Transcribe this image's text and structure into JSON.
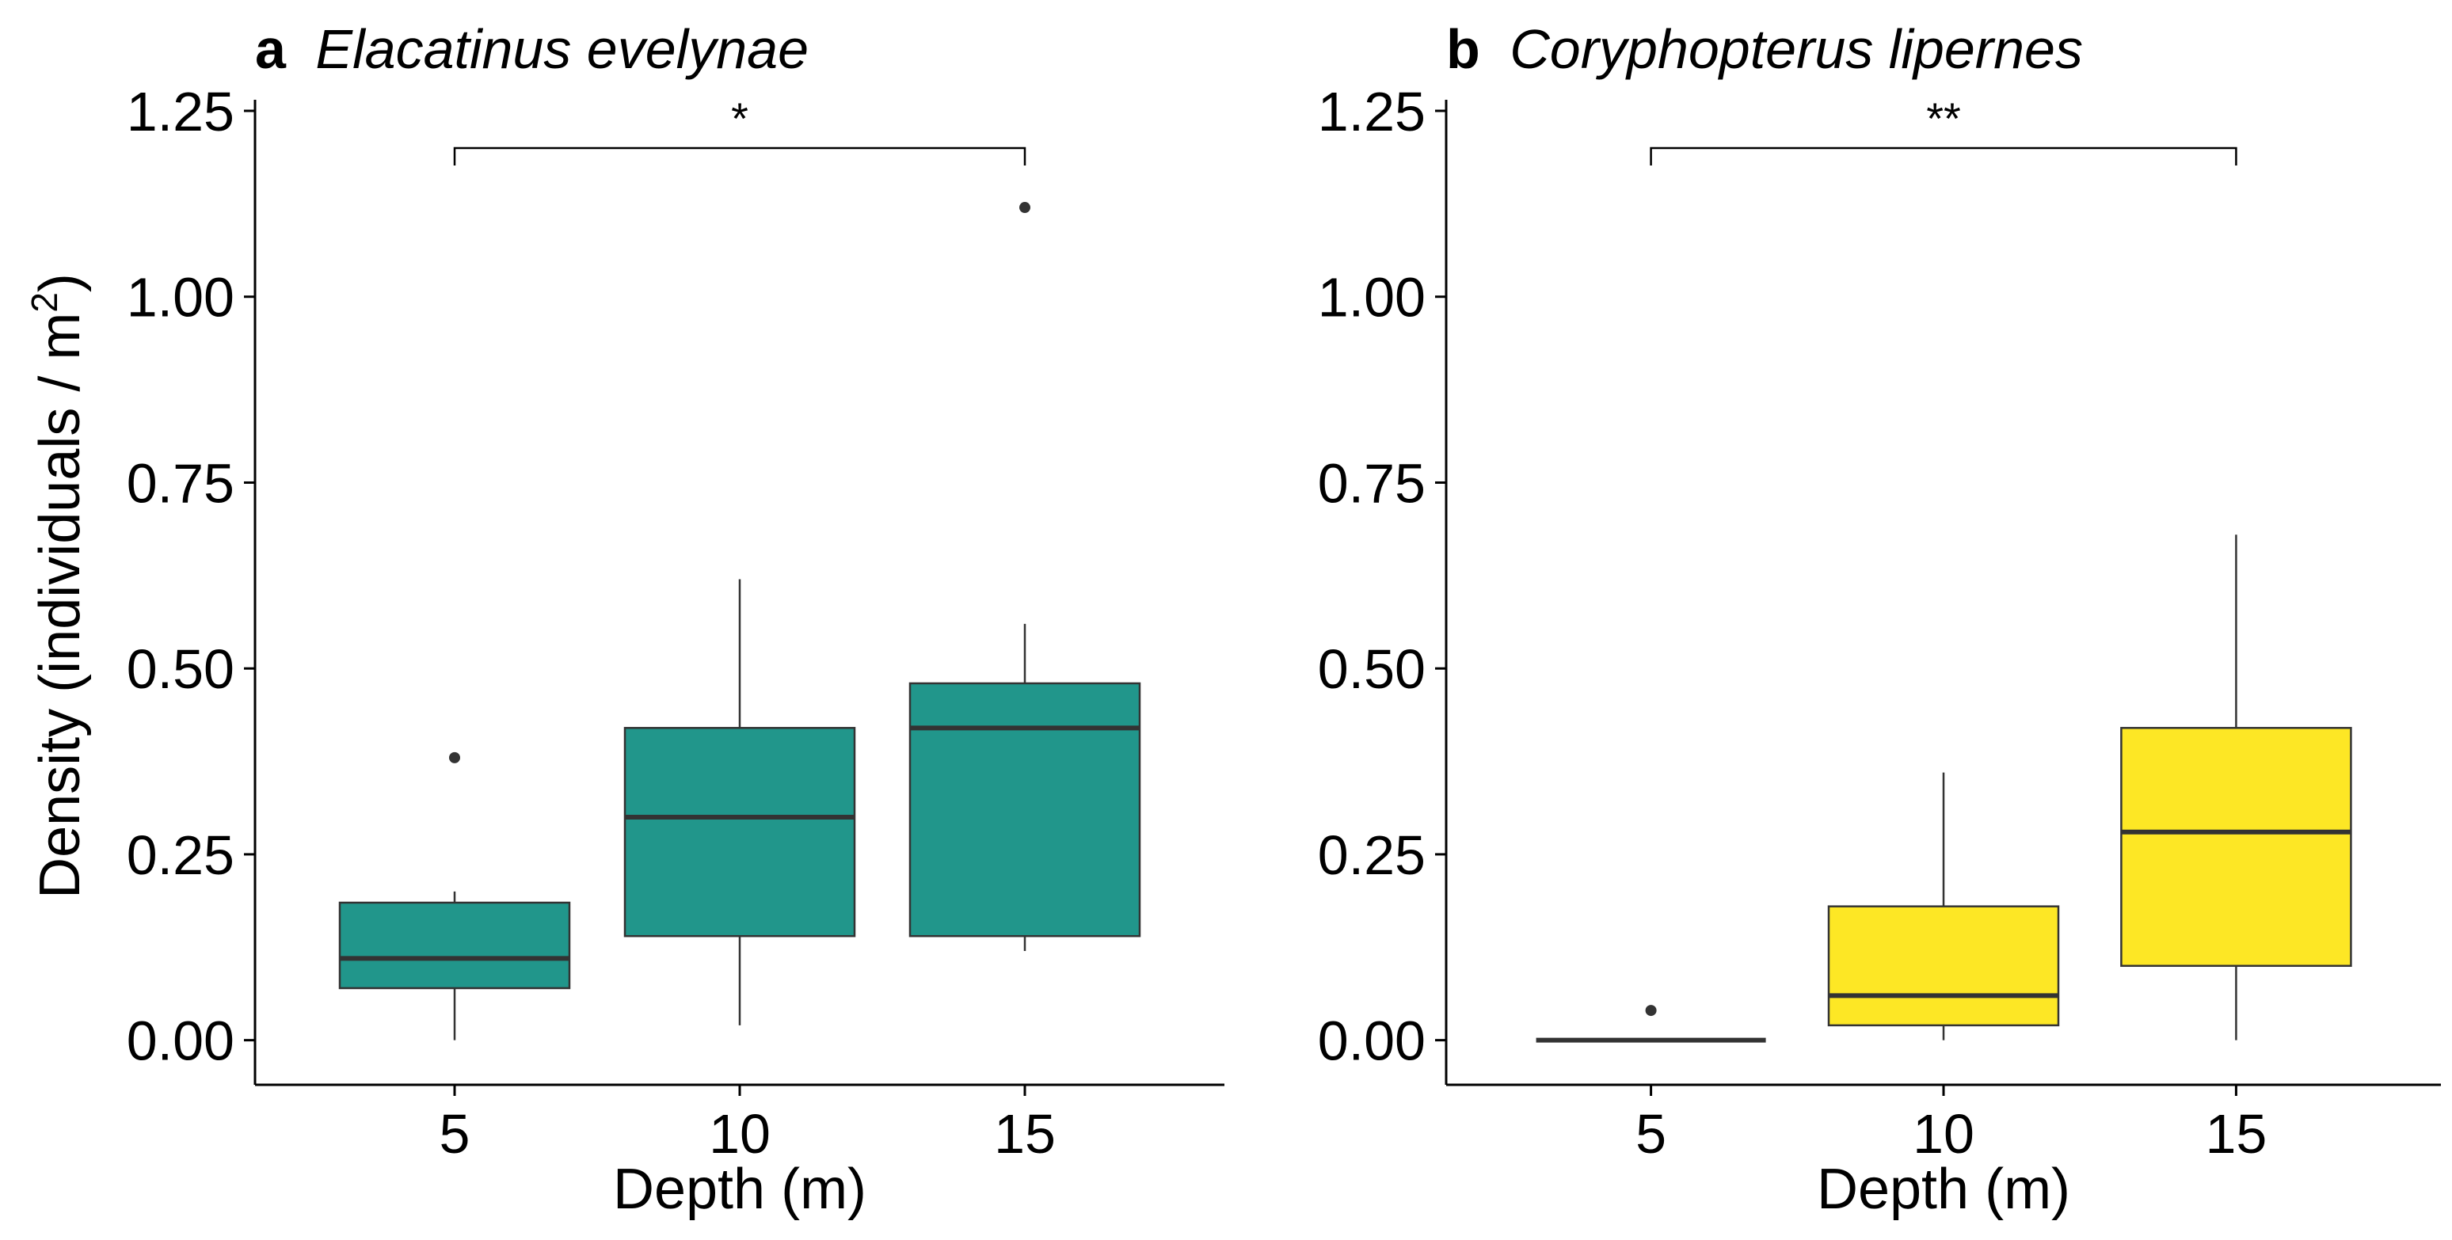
{
  "figure": {
    "ylabel_prefix": "Density (individuals / m",
    "ylabel_sup": "2",
    "ylabel_suffix": ")",
    "y_ticks": [
      "0.00",
      "0.25",
      "0.50",
      "0.75",
      "1.00",
      "1.25"
    ],
    "y_tick_values": [
      0,
      0.25,
      0.5,
      0.75,
      1.0,
      1.25
    ],
    "median_color": "#333333",
    "whisker_color": "#333333",
    "outlier_color": "#333333",
    "axis_color": "#000000"
  },
  "chart_data": [
    {
      "type": "box",
      "panel_letter": "a",
      "species": "Elacatinus evelynae",
      "xlabel": "Depth (m)",
      "categories": [
        "5",
        "10",
        "15"
      ],
      "ylim": [
        -0.06,
        1.25
      ],
      "fill_color": "#21968B",
      "boxes": [
        {
          "category": "5",
          "whisker_low": 0.0,
          "q1": 0.07,
          "median": 0.11,
          "q3": 0.185,
          "whisker_high": 0.2,
          "outliers": [
            0.38
          ]
        },
        {
          "category": "10",
          "whisker_low": 0.02,
          "q1": 0.14,
          "median": 0.3,
          "q3": 0.42,
          "whisker_high": 0.62,
          "outliers": []
        },
        {
          "category": "15",
          "whisker_low": 0.12,
          "q1": 0.14,
          "median": 0.42,
          "q3": 0.48,
          "whisker_high": 0.56,
          "outliers": [
            1.12
          ]
        }
      ],
      "significance": {
        "from": "5",
        "to": "15",
        "y": 1.2,
        "label": "*"
      }
    },
    {
      "type": "box",
      "panel_letter": "b",
      "species": "Coryphopterus lipernes",
      "xlabel": "Depth (m)",
      "categories": [
        "5",
        "10",
        "15"
      ],
      "ylim": [
        -0.06,
        1.25
      ],
      "fill_color": "#FDE725",
      "boxes": [
        {
          "category": "5",
          "whisker_low": 0.0,
          "q1": 0.0,
          "median": 0.0,
          "q3": 0.0,
          "whisker_high": 0.0,
          "outliers": [
            0.04
          ]
        },
        {
          "category": "10",
          "whisker_low": 0.0,
          "q1": 0.02,
          "median": 0.06,
          "q3": 0.18,
          "whisker_high": 0.36,
          "outliers": []
        },
        {
          "category": "15",
          "whisker_low": 0.0,
          "q1": 0.1,
          "median": 0.28,
          "q3": 0.42,
          "whisker_high": 0.68,
          "outliers": []
        }
      ],
      "significance": {
        "from": "5",
        "to": "15",
        "y": 1.2,
        "label": "**"
      }
    }
  ]
}
